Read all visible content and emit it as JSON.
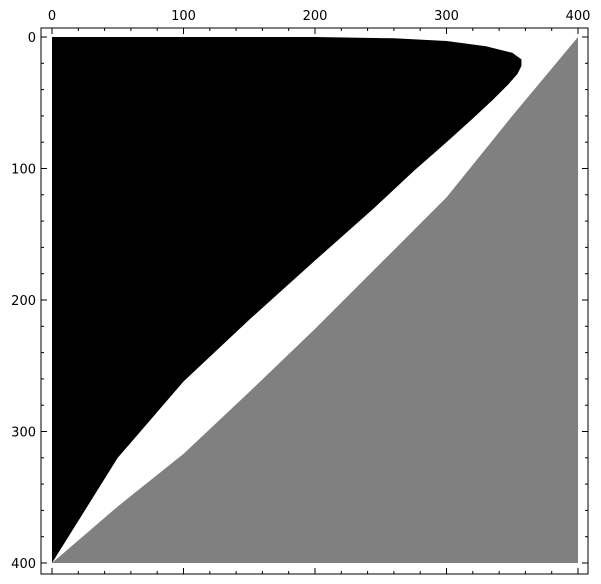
{
  "chart_data": {
    "type": "heatmap",
    "title": "",
    "xlabel": "",
    "ylabel": "",
    "xlim": [
      0,
      400
    ],
    "ylim": [
      400,
      0
    ],
    "x_axis_position": "top",
    "y_axis_inverted": true,
    "x_ticks": [
      0,
      100,
      200,
      300,
      400
    ],
    "y_ticks": [
      0,
      100,
      200,
      300,
      400
    ],
    "x_tick_labels": [
      "0",
      "100",
      "200",
      "300",
      "400"
    ],
    "y_tick_labels": [
      "0",
      "100",
      "200",
      "300",
      "400"
    ],
    "grid": false,
    "legend": "none",
    "colors": {
      "region_a": "#000000",
      "region_b": "#808080",
      "background": "#ffffff",
      "frame": "#000000"
    },
    "regions": [
      {
        "fill": "black",
        "boundary": [
          [
            0,
            0
          ],
          [
            200,
            0
          ],
          [
            260,
            1
          ],
          [
            300,
            3
          ],
          [
            330,
            7
          ],
          [
            350,
            12
          ],
          [
            357,
            17
          ],
          [
            357,
            22
          ],
          [
            354,
            28
          ],
          [
            347,
            36
          ],
          [
            335,
            48
          ],
          [
            320,
            62
          ],
          [
            300,
            80
          ],
          [
            275,
            102
          ],
          [
            245,
            130
          ],
          [
            200,
            170
          ],
          [
            150,
            215
          ],
          [
            100,
            262
          ],
          [
            50,
            320
          ],
          [
            0,
            400
          ]
        ]
      },
      {
        "fill": "gray",
        "boundary": [
          [
            400,
            0
          ],
          [
            400,
            400
          ],
          [
            0,
            400
          ],
          [
            50,
            357
          ],
          [
            100,
            317
          ],
          [
            150,
            270
          ],
          [
            200,
            222
          ],
          [
            250,
            172
          ],
          [
            300,
            122
          ],
          [
            350,
            60
          ]
        ]
      }
    ]
  }
}
